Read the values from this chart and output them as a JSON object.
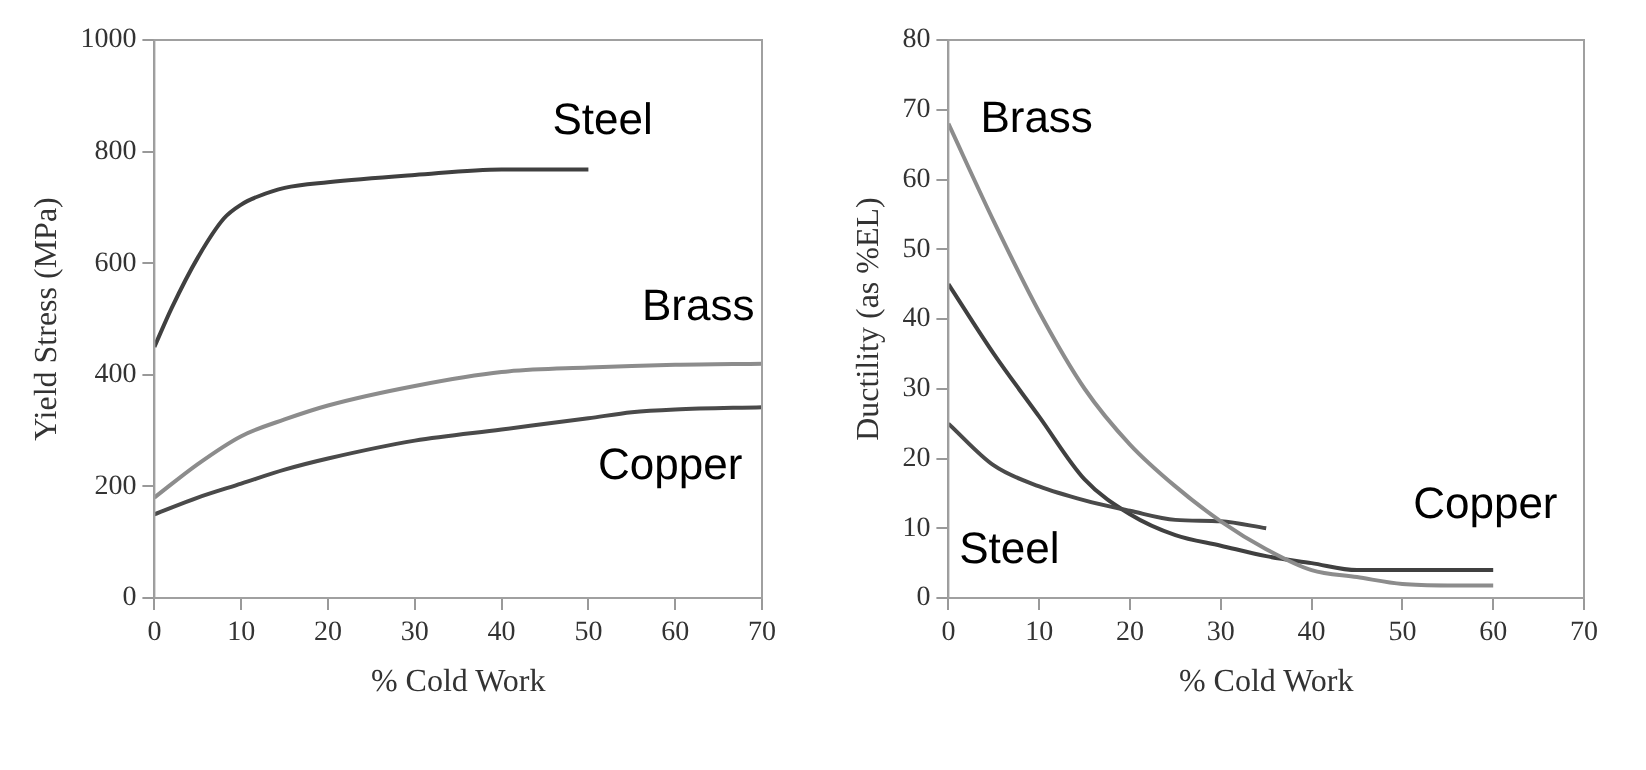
{
  "chart_data": [
    {
      "type": "line",
      "xlabel": "% Cold Work",
      "ylabel": "Yield Stress (MPa)",
      "xlim": [
        0,
        70
      ],
      "xticks": [
        0,
        10,
        20,
        30,
        40,
        50,
        60,
        70
      ],
      "ylim": [
        0,
        1000
      ],
      "yticks": [
        0,
        200,
        400,
        600,
        800,
        1000
      ],
      "grid": false,
      "legend": false,
      "marker": "none",
      "line_style": "solid",
      "series": [
        {
          "name": "Steel",
          "color": "#404040",
          "x": [
            0,
            2,
            5,
            8,
            10,
            12,
            15,
            20,
            30,
            40,
            50
          ],
          "values": [
            450,
            520,
            610,
            680,
            705,
            720,
            735,
            745,
            758,
            768,
            768
          ]
        },
        {
          "name": "Brass",
          "color": "#8c8c8c",
          "x": [
            0,
            5,
            10,
            15,
            20,
            30,
            40,
            50,
            60,
            70
          ],
          "values": [
            180,
            240,
            290,
            320,
            345,
            380,
            405,
            413,
            418,
            420
          ]
        },
        {
          "name": "Copper",
          "color": "#4a4a4a",
          "x": [
            0,
            5,
            10,
            15,
            20,
            30,
            40,
            50,
            55,
            60,
            70
          ],
          "values": [
            150,
            180,
            205,
            230,
            250,
            282,
            302,
            322,
            333,
            338,
            342
          ]
        }
      ]
    },
    {
      "type": "line",
      "xlabel": "% Cold Work",
      "ylabel": "Ductility (as %EL)",
      "xlim": [
        0,
        70
      ],
      "xticks": [
        0,
        10,
        20,
        30,
        40,
        50,
        60,
        70
      ],
      "ylim": [
        0,
        80
      ],
      "yticks": [
        0,
        10,
        20,
        30,
        40,
        50,
        60,
        70,
        80
      ],
      "grid": false,
      "legend": false,
      "marker": "none",
      "line_style": "solid",
      "series": [
        {
          "name": "Brass",
          "color": "#8c8c8c",
          "x": [
            0,
            5,
            10,
            15,
            20,
            25,
            30,
            35,
            40,
            45,
            50,
            55,
            60
          ],
          "values": [
            68,
            54,
            41,
            30,
            22,
            16,
            11,
            7,
            4,
            3,
            2,
            1.8,
            1.8
          ]
        },
        {
          "name": "Steel",
          "color": "#4a4a4a",
          "x": [
            0,
            5,
            10,
            15,
            20,
            25,
            30,
            35
          ],
          "values": [
            25,
            19,
            16,
            14,
            12.5,
            11.2,
            11,
            10
          ]
        },
        {
          "name": "Copper",
          "color": "#404040",
          "x": [
            0,
            5,
            10,
            15,
            20,
            25,
            30,
            35,
            40,
            45,
            60
          ],
          "values": [
            45,
            35,
            26,
            17,
            12,
            9,
            7.5,
            6,
            5,
            4,
            4
          ]
        }
      ]
    }
  ]
}
